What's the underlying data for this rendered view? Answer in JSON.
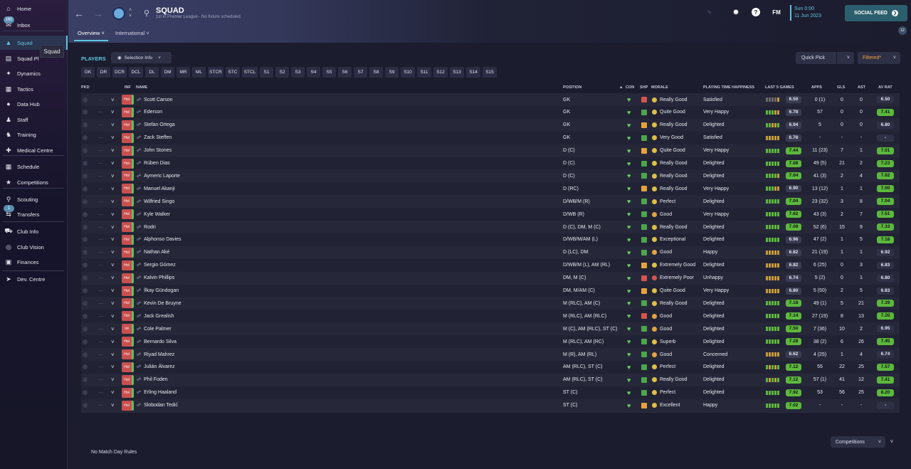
{
  "sidebar": {
    "items": [
      {
        "label": "Home",
        "icon": "home-icon"
      },
      {
        "label": "Inbox",
        "icon": "inbox-icon",
        "badge": "160"
      },
      {
        "label": "Squad",
        "icon": "shirt-icon",
        "active": true
      },
      {
        "label": "Squad Pl",
        "icon": "clipboard-icon"
      },
      {
        "label": "Dynamics",
        "icon": "dynamics-icon"
      },
      {
        "label": "Tactics",
        "icon": "tactics-icon"
      },
      {
        "label": "Data Hub",
        "icon": "datahub-icon"
      },
      {
        "label": "Staff",
        "icon": "staff-icon"
      },
      {
        "label": "Training",
        "icon": "training-icon"
      },
      {
        "label": "Medical Centre",
        "icon": "medical-icon"
      },
      {
        "label": "Schedule",
        "icon": "calendar-icon"
      },
      {
        "label": "Competitions",
        "icon": "trophy-icon"
      },
      {
        "label": "Scouting",
        "icon": "scouting-icon"
      },
      {
        "label": "Transfers",
        "icon": "transfers-icon",
        "badge": "1"
      },
      {
        "label": "Club Info",
        "icon": "shield-icon"
      },
      {
        "label": "Club Vision",
        "icon": "vision-icon"
      },
      {
        "label": "Finances",
        "icon": "finances-icon"
      },
      {
        "label": "Dev. Centre",
        "icon": "boot-icon"
      }
    ],
    "tooltip": "Squad"
  },
  "header": {
    "title": "SQUAD",
    "subtitle": "1st in Premier League - No fixture scheduled.",
    "tabs": [
      "Overview",
      "International"
    ],
    "date_line1": "Sun 0:00",
    "date_line2": "11 Jun 2023",
    "fm_label": "FM",
    "social_feed": "SOCIAL FEED",
    "social_count": "12"
  },
  "toolbar": {
    "players_label": "PLAYERS",
    "selection_info": "Selection Info",
    "quick_pick": "Quick Pick",
    "filtered": "Filtered*"
  },
  "positions": [
    "GK",
    "DR",
    "DCR",
    "DCL",
    "DL",
    "DM",
    "MR",
    "ML",
    "STCR",
    "STC",
    "STCL",
    "S1",
    "S2",
    "S3",
    "S4",
    "S5",
    "S6",
    "S7",
    "S8",
    "S9",
    "S10",
    "S11",
    "S12",
    "S13",
    "S14",
    "S15"
  ],
  "columns": {
    "pkd": "PKD",
    "inf": "INF",
    "name": "NAME",
    "position": "POSITION",
    "con": "CON",
    "shp": "SHP",
    "morale": "MORALE",
    "pth": "PLAYING TIME HAPPINESS",
    "last5": "LAST 5 GAMES",
    "apps": "APPS",
    "gls": "GLS",
    "ast": "AST",
    "avrat": "AV RAT"
  },
  "colors": {
    "accent": "#5ec6e0",
    "green": "#5cb83c",
    "orange": "#e8a23c",
    "red": "#c94f4f"
  },
  "players": [
    {
      "inf": "Hol",
      "name": "Scott Carson",
      "position": "GK",
      "shp": "red",
      "morale": "Really Good",
      "mc": "g",
      "happiness": "Satisfied",
      "form": "xxxxo",
      "avg": "6.50",
      "ag": "n",
      "apps": "0 (1)",
      "gls": "0",
      "ast": "0",
      "rat": "6.50",
      "rg": "n"
    },
    {
      "inf": "Hol",
      "name": "Ederson",
      "position": "GK",
      "shp": "green",
      "morale": "Quite Good",
      "mc": "g",
      "happiness": "Very Happy",
      "form": "gggoo",
      "avg": "6.78",
      "ag": "n",
      "apps": "57",
      "gls": "0",
      "ast": "0",
      "rat": "7.41",
      "rg": "g"
    },
    {
      "inf": "Hol",
      "name": "Stefan Ortega",
      "position": "GK",
      "shp": "orange",
      "morale": "Really Good",
      "mc": "g",
      "happiness": "Delighted",
      "form": "ggoog",
      "avg": "6.94",
      "ag": "n",
      "apps": "5",
      "gls": "0",
      "ast": "0",
      "rat": "6.80",
      "rg": "n"
    },
    {
      "inf": "Hol",
      "name": "Zack Steffen",
      "position": "GK",
      "shp": "green",
      "morale": "Very Good",
      "mc": "g",
      "happiness": "Satisfied",
      "form": "ooooo",
      "avg": "6.78",
      "ag": "n",
      "apps": "-",
      "gls": "-",
      "ast": "-",
      "rat": "-",
      "rg": "n"
    },
    {
      "inf": "Hol",
      "name": "John Stones",
      "position": "D (C)",
      "shp": "orange",
      "morale": "Quite Good",
      "mc": "g",
      "happiness": "Very Happy",
      "form": "ggggg",
      "avg": "7.44",
      "ag": "g",
      "apps": "11 (23)",
      "gls": "7",
      "ast": "1",
      "rat": "7.01",
      "rg": "g"
    },
    {
      "inf": "Hol",
      "name": "Rúben Dias",
      "position": "D (C)",
      "shp": "green",
      "morale": "Really Good",
      "mc": "g",
      "happiness": "Delighted",
      "form": "ggggg",
      "avg": "7.08",
      "ag": "g",
      "apps": "49 (5)",
      "gls": "21",
      "ast": "2",
      "rat": "7.23",
      "rg": "g"
    },
    {
      "inf": "Hol",
      "name": "Aymeric Laporte",
      "position": "D (C)",
      "shp": "green",
      "morale": "Really Good",
      "mc": "g",
      "happiness": "Delighted",
      "form": "ggggo",
      "avg": "7.04",
      "ag": "g",
      "apps": "41 (3)",
      "gls": "2",
      "ast": "4",
      "rat": "7.02",
      "rg": "g"
    },
    {
      "inf": "Hol",
      "name": "Manuel Akanji",
      "position": "D (RC)",
      "shp": "orange",
      "morale": "Really Good",
      "mc": "g",
      "happiness": "Very Happy",
      "form": "gggoo",
      "avg": "6.90",
      "ag": "n",
      "apps": "13 (12)",
      "gls": "1",
      "ast": "1",
      "rat": "7.00",
      "rg": "g"
    },
    {
      "inf": "Hol",
      "name": "Wilfried Singo",
      "position": "D/WB/M (R)",
      "shp": "green",
      "morale": "Perfect",
      "mc": "g",
      "happiness": "Delighted",
      "form": "ggggg",
      "avg": "7.04",
      "ag": "g",
      "apps": "23 (32)",
      "gls": "3",
      "ast": "8",
      "rat": "7.04",
      "rg": "g"
    },
    {
      "inf": "Hol",
      "name": "Kyle Walker",
      "position": "D/WB (R)",
      "shp": "green",
      "morale": "Good",
      "mc": "o",
      "happiness": "Very Happy",
      "form": "ggggg",
      "avg": "7.62",
      "ag": "g",
      "apps": "43 (3)",
      "gls": "2",
      "ast": "7",
      "rat": "7.51",
      "rg": "g"
    },
    {
      "inf": "Hol",
      "name": "Rodri",
      "position": "D (C), DM, M (C)",
      "shp": "green",
      "morale": "Really Good",
      "mc": "g",
      "happiness": "Delighted",
      "form": "ggggg",
      "avg": "7.08",
      "ag": "g",
      "apps": "52 (6)",
      "gls": "15",
      "ast": "9",
      "rat": "7.33",
      "rg": "g"
    },
    {
      "inf": "Hol",
      "name": "Alphonso Davies",
      "position": "D/WB/M/AM (L)",
      "shp": "green",
      "morale": "Exceptional",
      "mc": "g",
      "happiness": "Delighted",
      "form": "ggggg",
      "avg": "6.96",
      "ag": "n",
      "apps": "47 (2)",
      "gls": "1",
      "ast": "5",
      "rat": "7.18",
      "rg": "g"
    },
    {
      "inf": "Hol",
      "name": "Nathan Aké",
      "position": "D (LC), DM",
      "shp": "green",
      "morale": "Good",
      "mc": "o",
      "happiness": "Happy",
      "form": "ooooo",
      "avg": "6.82",
      "ag": "n",
      "apps": "21 (19)",
      "gls": "1",
      "ast": "1",
      "rat": "6.92",
      "rg": "n"
    },
    {
      "inf": "Hol",
      "name": "Sergio Gómez",
      "position": "D/WB/M (L), AM (RL)",
      "shp": "orange",
      "morale": "Extremely Good",
      "mc": "g",
      "happiness": "Delighted",
      "form": "ooooo",
      "avg": "6.82",
      "ag": "n",
      "apps": "6 (25)",
      "gls": "0",
      "ast": "3",
      "rat": "6.83",
      "rg": "n"
    },
    {
      "inf": "Hol",
      "name": "Kalvin Phillips",
      "position": "DM, M (C)",
      "shp": "red",
      "morale": "Extremely Poor",
      "mc": "r",
      "happiness": "Unhappy",
      "form": "ooooo",
      "avg": "6.74",
      "ag": "n",
      "apps": "5 (2)",
      "gls": "0",
      "ast": "1",
      "rat": "6.80",
      "rg": "n"
    },
    {
      "inf": "Hol",
      "name": "İlkay Gündogan",
      "position": "DM, M/AM (C)",
      "shp": "orange",
      "morale": "Quite Good",
      "mc": "g",
      "happiness": "Very Happy",
      "form": "ooooo",
      "avg": "6.80",
      "ag": "n",
      "apps": "5 (50)",
      "gls": "2",
      "ast": "5",
      "rat": "6.83",
      "rg": "n"
    },
    {
      "inf": "Hol",
      "name": "Kevin De Bruyne",
      "position": "M (RLC), AM (C)",
      "shp": "green",
      "morale": "Really Good",
      "mc": "g",
      "happiness": "Delighted",
      "form": "ggggg",
      "avg": "7.18",
      "ag": "g",
      "apps": "49 (1)",
      "gls": "5",
      "ast": "21",
      "rat": "7.39",
      "rg": "g"
    },
    {
      "inf": "Hol",
      "name": "Jack Grealish",
      "position": "M (RLC), AM (RLC)",
      "shp": "red",
      "morale": "Good",
      "mc": "o",
      "happiness": "Delighted",
      "form": "ggggg",
      "avg": "7.14",
      "ag": "g",
      "apps": "27 (19)",
      "gls": "8",
      "ast": "13",
      "rat": "7.20",
      "rg": "g"
    },
    {
      "inf": "Int",
      "name": "Cole Palmer",
      "position": "M (C), AM (RLC), ST (C)",
      "shp": "green",
      "morale": "Good",
      "mc": "o",
      "happiness": "Delighted",
      "form": "ggggg",
      "avg": "7.50",
      "ag": "g",
      "apps": "7 (36)",
      "gls": "10",
      "ast": "2",
      "rat": "6.95",
      "rg": "n"
    },
    {
      "inf": "Hol",
      "name": "Bernardo Silva",
      "position": "M (RLC), AM (RC)",
      "shp": "green",
      "morale": "Superb",
      "mc": "g",
      "happiness": "Delighted",
      "form": "ggggg",
      "avg": "7.28",
      "ag": "g",
      "apps": "38 (2)",
      "gls": "6",
      "ast": "26",
      "rat": "7.45",
      "rg": "g"
    },
    {
      "inf": "Hol",
      "name": "Riyad Mahrez",
      "position": "M (R), AM (RL)",
      "shp": "green",
      "morale": "Good",
      "mc": "o",
      "happiness": "Concerned",
      "form": "ooooo",
      "avg": "6.62",
      "ag": "n",
      "apps": "4 (25)",
      "gls": "1",
      "ast": "4",
      "rat": "6.74",
      "rg": "n"
    },
    {
      "inf": "Hol",
      "name": "Julián Álvarez",
      "position": "AM (RLC), ST (C)",
      "shp": "green",
      "morale": "Perfect",
      "mc": "g",
      "happiness": "Delighted",
      "form": "gogog",
      "avg": "7.12",
      "ag": "g",
      "apps": "55",
      "gls": "22",
      "ast": "25",
      "rat": "7.57",
      "rg": "g"
    },
    {
      "inf": "Hol",
      "name": "Phil Foden",
      "position": "AM (RLC), ST (C)",
      "shp": "green",
      "morale": "Really Good",
      "mc": "g",
      "happiness": "Delighted",
      "form": "gogog",
      "avg": "7.12",
      "ag": "g",
      "apps": "57 (1)",
      "gls": "41",
      "ast": "12",
      "rat": "7.41",
      "rg": "g"
    },
    {
      "inf": "Hol",
      "name": "Erling Haaland",
      "position": "ST (C)",
      "shp": "green",
      "morale": "Perfect",
      "mc": "g",
      "happiness": "Delighted",
      "form": "ggggg",
      "avg": "7.92",
      "ag": "g",
      "apps": "53",
      "gls": "56",
      "ast": "25",
      "rat": "8.20",
      "rg": "g"
    },
    {
      "inf": "Hol",
      "name": "Slobodan Tedić",
      "position": "ST (C)",
      "shp": "orange",
      "morale": "Excellent",
      "mc": "g",
      "happiness": "Happy",
      "form": "ggggg",
      "avg": "7.02",
      "ag": "g",
      "apps": "-",
      "gls": "-",
      "ast": "-",
      "rat": "-",
      "rg": "n"
    }
  ],
  "footer": {
    "competitions": "Competitions",
    "no_match_day": "No Match Day Rules"
  }
}
